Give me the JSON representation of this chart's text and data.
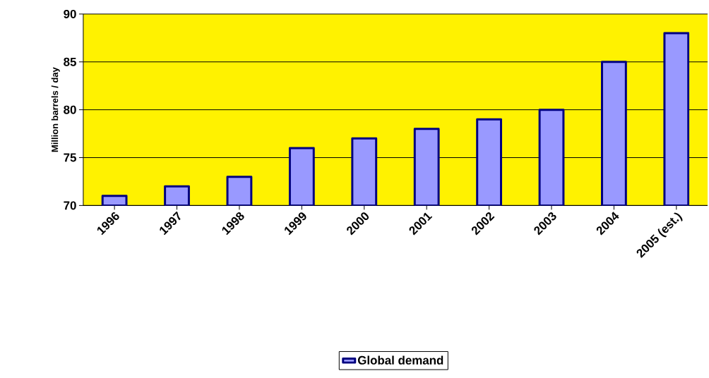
{
  "chart_data": {
    "type": "bar",
    "ylabel": "Million barrels / day",
    "categories": [
      "1996",
      "1997",
      "1998",
      "1999",
      "2000",
      "2001",
      "2002",
      "2003",
      "2004",
      "2005 (est.)"
    ],
    "series": [
      {
        "name": "Global demand",
        "color": "#9999ff",
        "values": [
          71,
          72,
          73,
          76,
          77,
          78,
          79,
          80,
          85,
          88
        ]
      }
    ],
    "ylim": [
      70,
      90
    ],
    "yticks": [
      70,
      75,
      80,
      85,
      90
    ],
    "grid": "y",
    "legend": "bottom"
  }
}
